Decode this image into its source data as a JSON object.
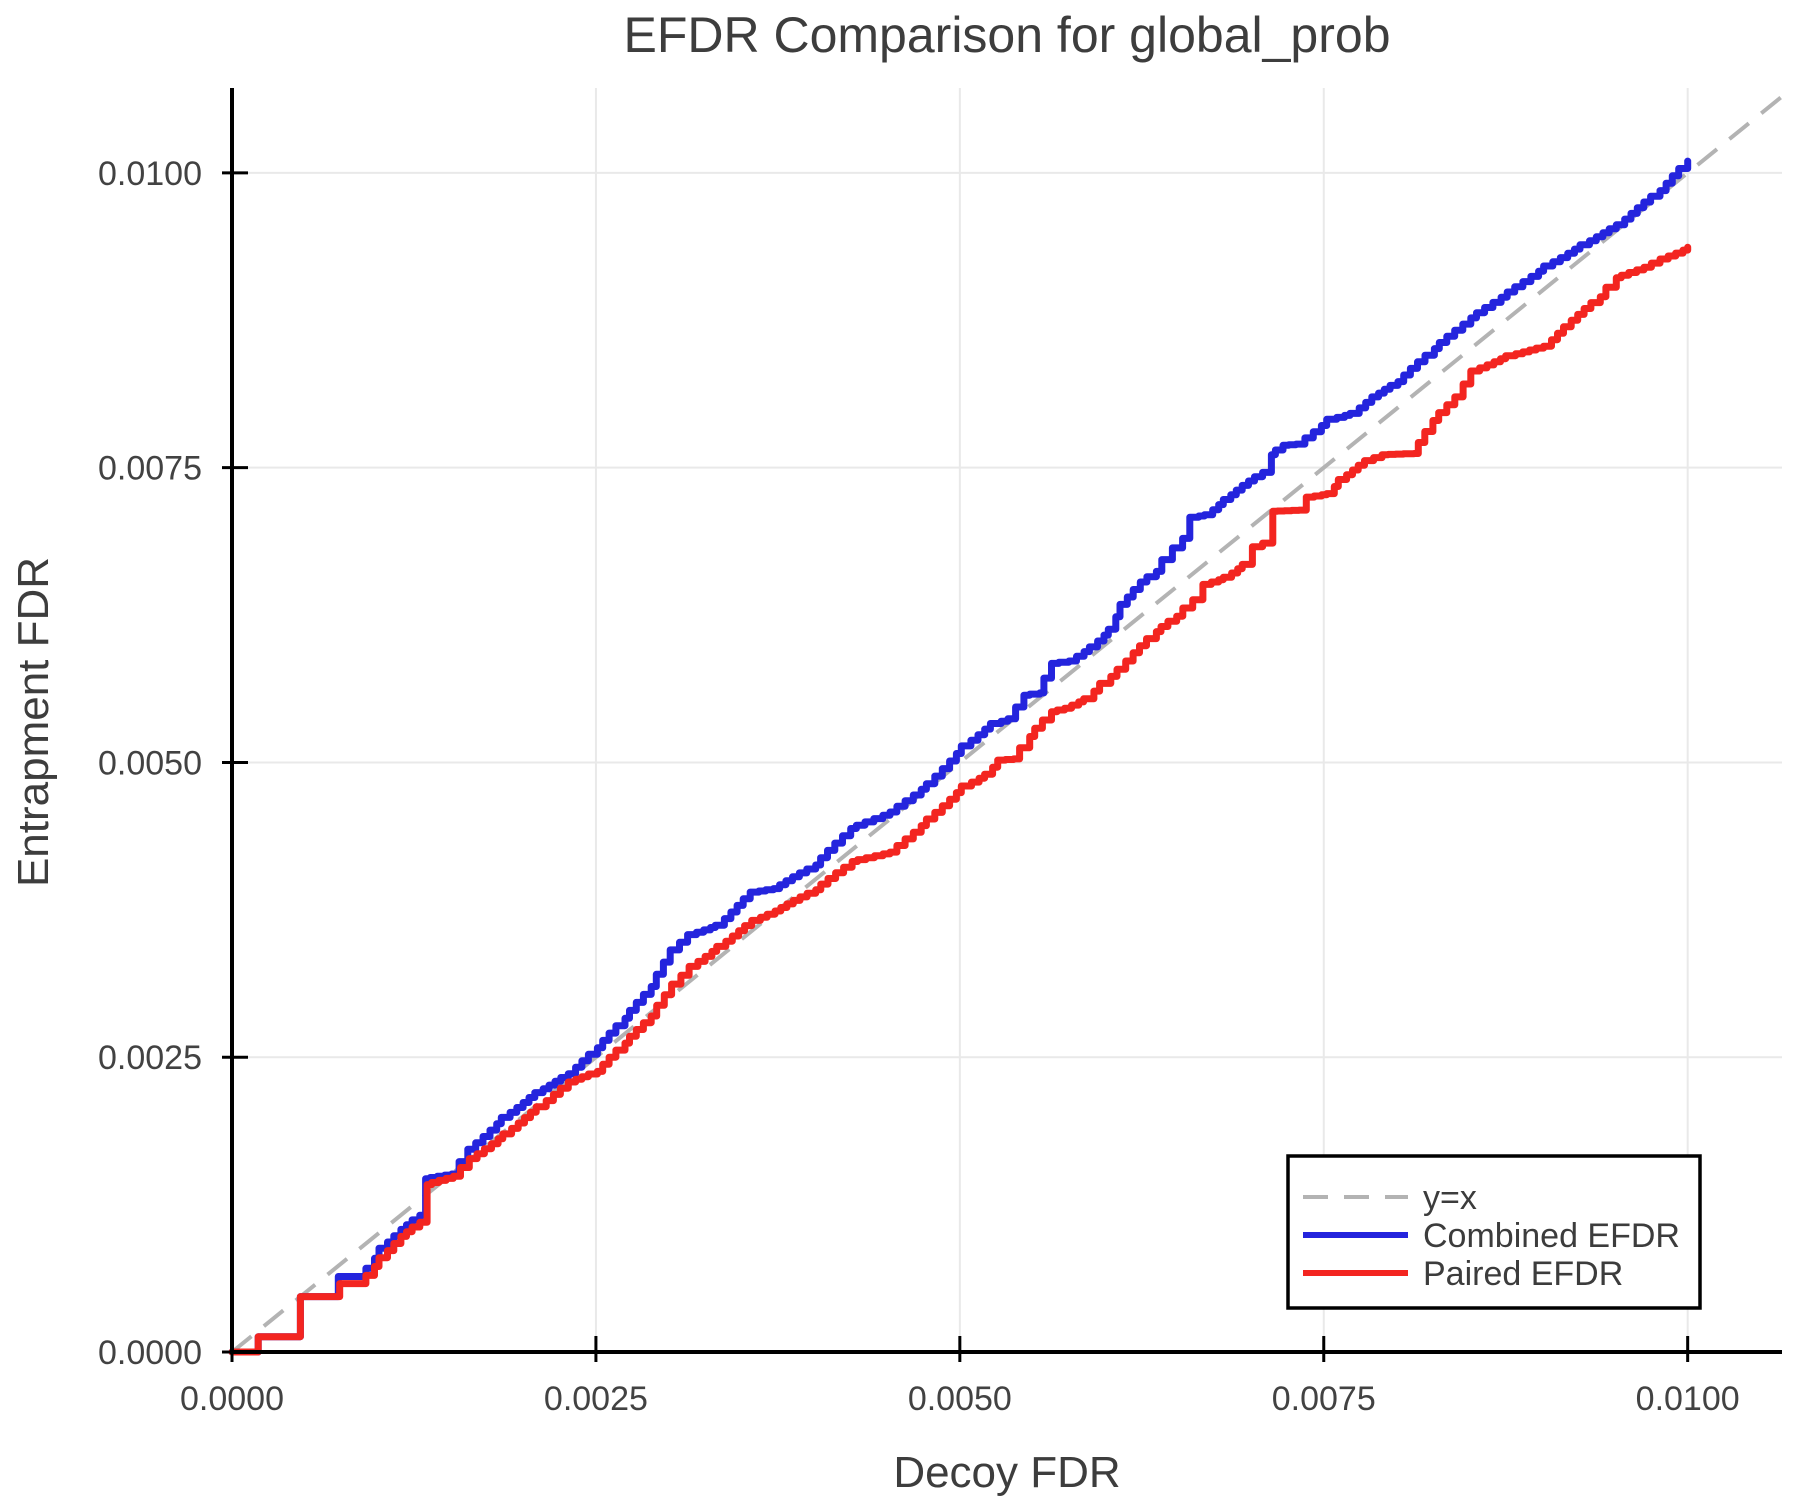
{
  "chart_data": {
    "type": "line",
    "title": "EFDR Comparison for global_prob",
    "xlabel": "Decoy FDR",
    "ylabel": "Entrapment FDR",
    "xlim": [
      0,
      0.010648
    ],
    "ylim": [
      0,
      0.01072
    ],
    "grid": true,
    "grid_color": "#e9e9e9",
    "axis_color": "#000000",
    "background": "#ffffff",
    "xticks": {
      "values": [
        0.0,
        0.0025,
        0.005,
        0.0075,
        0.01
      ],
      "labels": [
        "0.0000",
        "0.0025",
        "0.0050",
        "0.0075",
        "0.0100"
      ]
    },
    "yticks": {
      "values": [
        0.0,
        0.0025,
        0.005,
        0.0075,
        0.01
      ],
      "labels": [
        "0.0000",
        "0.0025",
        "0.0050",
        "0.0075",
        "0.0100"
      ]
    },
    "legend": {
      "position": "bottom-right"
    },
    "series": [
      {
        "name": "y=x",
        "style": "dashed",
        "color": "#b3b3b3",
        "width": 4,
        "points": [
          [
            0,
            0
          ],
          [
            0.010648,
            0.010648
          ]
        ]
      },
      {
        "name": "Combined EFDR",
        "style": "step",
        "color": "#2424dd",
        "width": 7,
        "points": [
          [
            0.0,
            0.0
          ],
          [
            0.00016,
            0.0
          ],
          [
            0.00018,
            0.00013
          ],
          [
            0.00044,
            0.00013
          ],
          [
            0.00047,
            0.00047
          ],
          [
            0.00069,
            0.00047
          ],
          [
            0.00073,
            0.00064
          ],
          [
            0.00087,
            0.00064
          ],
          [
            0.00092,
            0.00071
          ],
          [
            0.00101,
            0.00088
          ],
          [
            0.00116,
            0.00104
          ],
          [
            0.00129,
            0.00116
          ],
          [
            0.00133,
            0.00147
          ],
          [
            0.00151,
            0.00151
          ],
          [
            0.00162,
            0.00172
          ],
          [
            0.00185,
            0.00199
          ],
          [
            0.00208,
            0.0022
          ],
          [
            0.00231,
            0.00236
          ],
          [
            0.00251,
            0.00258
          ],
          [
            0.0027,
            0.00283
          ],
          [
            0.00288,
            0.0031
          ],
          [
            0.00301,
            0.00341
          ],
          [
            0.00313,
            0.00354
          ],
          [
            0.00332,
            0.00362
          ],
          [
            0.00356,
            0.0039
          ],
          [
            0.00372,
            0.00393
          ],
          [
            0.00401,
            0.00413
          ],
          [
            0.00425,
            0.00444
          ],
          [
            0.00452,
            0.00458
          ],
          [
            0.00477,
            0.00482
          ],
          [
            0.00501,
            0.00514
          ],
          [
            0.00521,
            0.00533
          ],
          [
            0.00533,
            0.00537
          ],
          [
            0.00544,
            0.00557
          ],
          [
            0.00555,
            0.00559
          ],
          [
            0.00563,
            0.00584
          ],
          [
            0.00575,
            0.00586
          ],
          [
            0.00589,
            0.00598
          ],
          [
            0.00602,
            0.00613
          ],
          [
            0.0061,
            0.00634
          ],
          [
            0.00624,
            0.00653
          ],
          [
            0.00635,
            0.00662
          ],
          [
            0.00646,
            0.00682
          ],
          [
            0.00653,
            0.0069
          ],
          [
            0.00658,
            0.00708
          ],
          [
            0.00668,
            0.0071
          ],
          [
            0.00681,
            0.00723
          ],
          [
            0.00694,
            0.00735
          ],
          [
            0.00708,
            0.00746
          ],
          [
            0.00714,
            0.00761
          ],
          [
            0.00722,
            0.00769
          ],
          [
            0.00731,
            0.0077
          ],
          [
            0.00752,
            0.00791
          ],
          [
            0.00768,
            0.00796
          ],
          [
            0.00783,
            0.0081
          ],
          [
            0.00801,
            0.00823
          ],
          [
            0.00826,
            0.00851
          ],
          [
            0.00851,
            0.00877
          ],
          [
            0.00876,
            0.00899
          ],
          [
            0.00901,
            0.00921
          ],
          [
            0.00926,
            0.00939
          ],
          [
            0.00951,
            0.00956
          ],
          [
            0.00981,
            0.00985
          ],
          [
            0.01,
            0.0101
          ]
        ]
      },
      {
        "name": "Paired EFDR",
        "style": "step",
        "color": "#f32520",
        "width": 7,
        "points": [
          [
            0.0,
            0.0
          ],
          [
            0.00016,
            0.0
          ],
          [
            0.00018,
            0.00013
          ],
          [
            0.00044,
            0.00013
          ],
          [
            0.00047,
            0.00047
          ],
          [
            0.00069,
            0.00047
          ],
          [
            0.00074,
            0.00058
          ],
          [
            0.00087,
            0.00058
          ],
          [
            0.00092,
            0.00065
          ],
          [
            0.00101,
            0.0008
          ],
          [
            0.00116,
            0.00098
          ],
          [
            0.00129,
            0.0011
          ],
          [
            0.00134,
            0.00142
          ],
          [
            0.00152,
            0.00149
          ],
          [
            0.00163,
            0.00164
          ],
          [
            0.00186,
            0.00185
          ],
          [
            0.00209,
            0.00208
          ],
          [
            0.00231,
            0.00229
          ],
          [
            0.00251,
            0.00238
          ],
          [
            0.0027,
            0.00262
          ],
          [
            0.00288,
            0.00285
          ],
          [
            0.00302,
            0.00312
          ],
          [
            0.00314,
            0.00327
          ],
          [
            0.00333,
            0.00344
          ],
          [
            0.00357,
            0.00366
          ],
          [
            0.00373,
            0.00374
          ],
          [
            0.00401,
            0.00392
          ],
          [
            0.00426,
            0.00416
          ],
          [
            0.00452,
            0.00424
          ],
          [
            0.00477,
            0.00452
          ],
          [
            0.00501,
            0.0048
          ],
          [
            0.00517,
            0.0049
          ],
          [
            0.00526,
            0.00502
          ],
          [
            0.00537,
            0.00503
          ],
          [
            0.00548,
            0.00522
          ],
          [
            0.00563,
            0.00543
          ],
          [
            0.00572,
            0.00546
          ],
          [
            0.00585,
            0.00554
          ],
          [
            0.00596,
            0.00567
          ],
          [
            0.00608,
            0.00579
          ],
          [
            0.00619,
            0.00593
          ],
          [
            0.00635,
            0.00611
          ],
          [
            0.00649,
            0.00624
          ],
          [
            0.0066,
            0.00638
          ],
          [
            0.00667,
            0.00651
          ],
          [
            0.00681,
            0.00657
          ],
          [
            0.00694,
            0.00668
          ],
          [
            0.00701,
            0.00683
          ],
          [
            0.00708,
            0.00686
          ],
          [
            0.00715,
            0.00713
          ],
          [
            0.00733,
            0.00714
          ],
          [
            0.00738,
            0.00725
          ],
          [
            0.00752,
            0.00728
          ],
          [
            0.0076,
            0.0074
          ],
          [
            0.00778,
            0.00756
          ],
          [
            0.0079,
            0.00761
          ],
          [
            0.00812,
            0.00762
          ],
          [
            0.00825,
            0.0079
          ],
          [
            0.0084,
            0.0081
          ],
          [
            0.00851,
            0.00832
          ],
          [
            0.00875,
            0.00845
          ],
          [
            0.00901,
            0.00853
          ],
          [
            0.0092,
            0.00875
          ],
          [
            0.0094,
            0.00895
          ],
          [
            0.00951,
            0.00911
          ],
          [
            0.0097,
            0.0092
          ],
          [
            0.00981,
            0.00927
          ],
          [
            0.01,
            0.00937
          ]
        ]
      }
    ]
  },
  "text_colors": {
    "title": "#3d3d3d",
    "tick": "#424242",
    "legend": "#3c3c3c"
  }
}
